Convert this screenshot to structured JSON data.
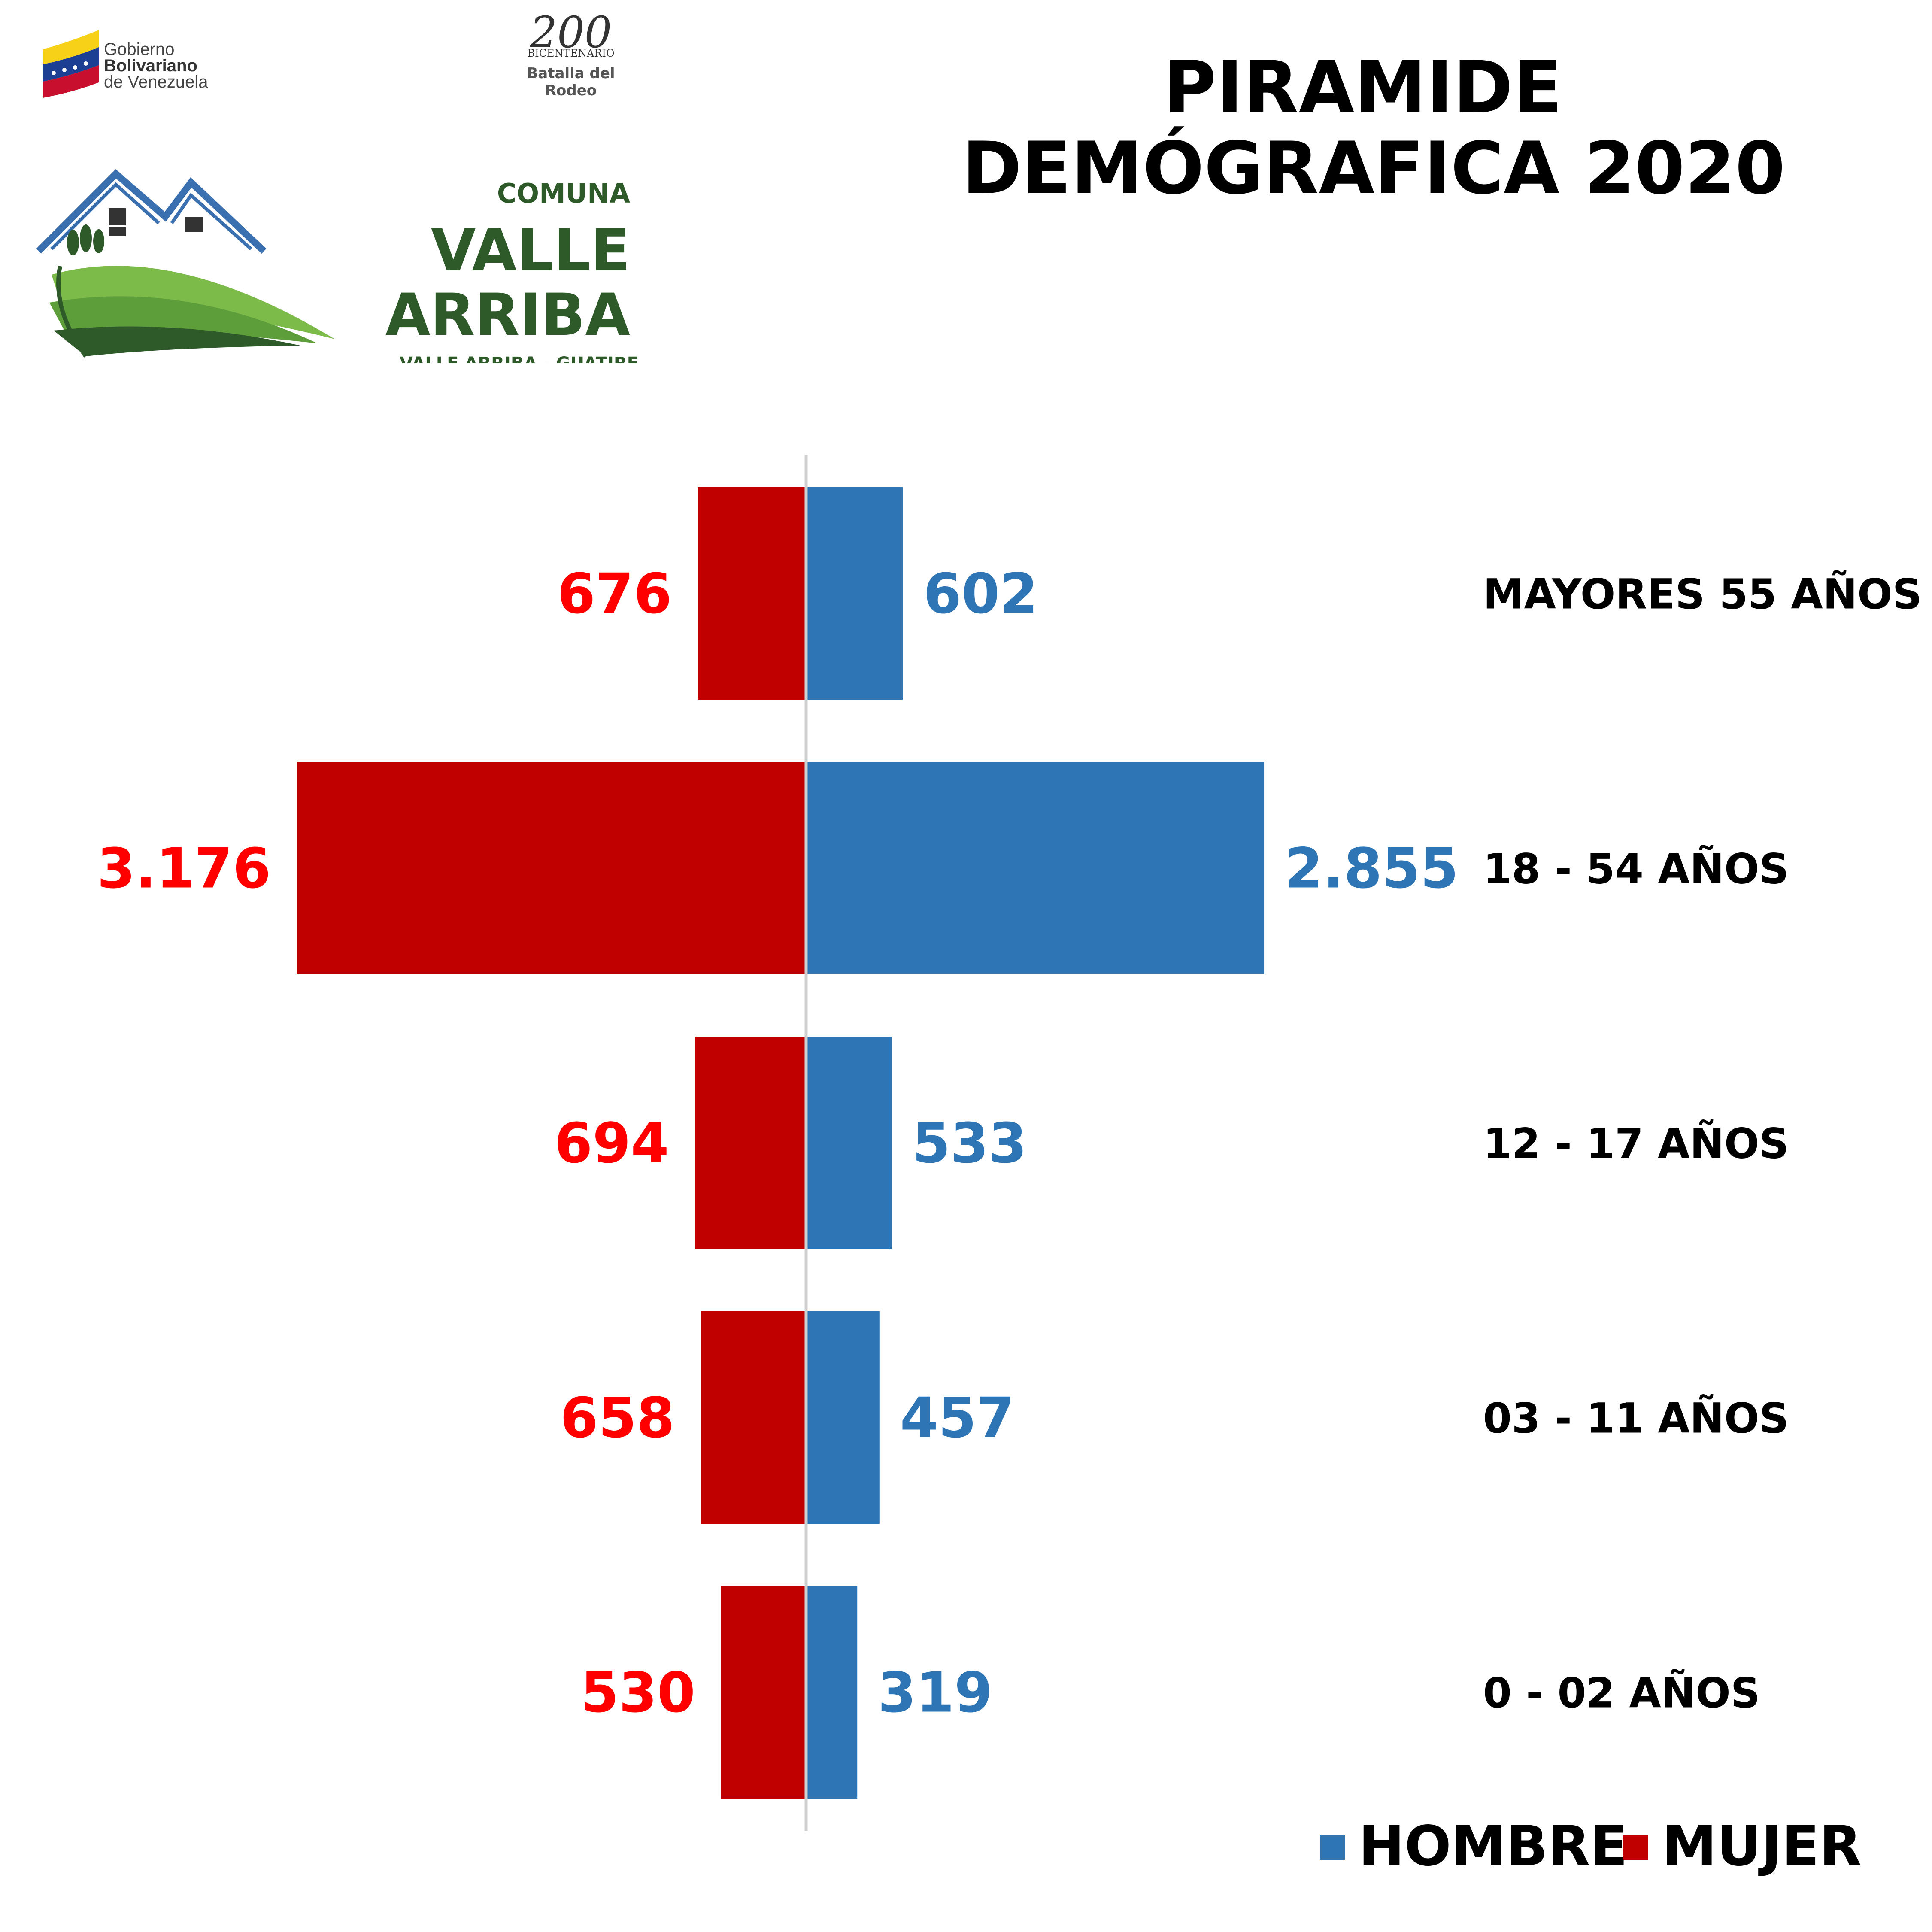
{
  "header": {
    "title_line1": "PIRAMIDE",
    "title_line2": "DEMÓGRAFICA 2020"
  },
  "logos": {
    "gobierno": [
      "Gobierno",
      "Bolivariano",
      "de Venezuela"
    ],
    "bicentenario": {
      "numeral": "200",
      "word": "BICENTENARIO",
      "caption_line1": "Batalla del",
      "caption_line2": "Rodeo"
    },
    "comuna": {
      "label": "COMUNA",
      "name_line1": "VALLE",
      "name_line2": "ARRIBA",
      "subtitle": "VALLE ARRIBA - GUATIRE"
    }
  },
  "colors": {
    "hombre": "#2e75b6",
    "mujer": "#c00000",
    "hombre_text": "#2e75b6",
    "mujer_text": "#ff0000"
  },
  "chart_data": {
    "type": "bar",
    "orientation": "horizontal-pyramid",
    "categories": [
      "MAYORES 55 AÑOS",
      "18 - 54 AÑOS",
      "12 - 17 AÑOS",
      "03 - 11 AÑOS",
      "0 - 02 AÑOS"
    ],
    "series": [
      {
        "name": "HOMBRE",
        "side": "right",
        "values": [
          602,
          2855,
          533,
          457,
          319
        ],
        "labels": [
          "602",
          "2.855",
          "533",
          "457",
          "319"
        ]
      },
      {
        "name": "MUJER",
        "side": "left",
        "values": [
          676,
          3176,
          694,
          658,
          530
        ],
        "labels": [
          "676",
          "3.176",
          "694",
          "658",
          "530"
        ]
      }
    ],
    "title": "PIRAMIDE DEMÓGRAFICA 2020",
    "legend": "bottom-right",
    "grid": false
  }
}
